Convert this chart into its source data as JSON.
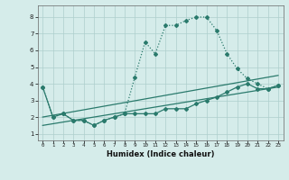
{
  "xlabel": "Humidex (Indice chaleur)",
  "x_values": [
    0,
    1,
    2,
    3,
    4,
    5,
    6,
    7,
    8,
    9,
    10,
    11,
    12,
    13,
    14,
    15,
    16,
    17,
    18,
    19,
    20,
    21,
    22,
    23
  ],
  "line1": [
    3.8,
    2.0,
    2.2,
    1.8,
    1.8,
    1.5,
    1.8,
    2.0,
    2.2,
    4.4,
    6.5,
    5.8,
    7.5,
    7.5,
    7.8,
    8.0,
    8.0,
    7.2,
    5.8,
    4.9,
    4.3,
    4.0,
    3.7,
    3.9
  ],
  "line2": [
    3.8,
    2.0,
    2.2,
    1.8,
    1.8,
    1.5,
    1.8,
    2.0,
    2.2,
    2.2,
    2.2,
    2.2,
    2.5,
    2.5,
    2.5,
    2.8,
    3.0,
    3.2,
    3.5,
    3.8,
    4.0,
    3.7,
    3.7,
    3.9
  ],
  "line3_x": [
    0,
    23
  ],
  "line3_y": [
    2.0,
    4.5
  ],
  "line4_x": [
    0,
    23
  ],
  "line4_y": [
    1.5,
    3.8
  ],
  "line_color": "#2a7a6c",
  "bg_color": "#d5ecea",
  "grid_color": "#aecfcc",
  "ylim": [
    0.6,
    8.7
  ],
  "xlim": [
    -0.5,
    23.5
  ],
  "yticks": [
    1,
    2,
    3,
    4,
    5,
    6,
    7,
    8
  ],
  "xticks": [
    0,
    1,
    2,
    3,
    4,
    5,
    6,
    7,
    8,
    9,
    10,
    11,
    12,
    13,
    14,
    15,
    16,
    17,
    18,
    19,
    20,
    21,
    22,
    23
  ]
}
